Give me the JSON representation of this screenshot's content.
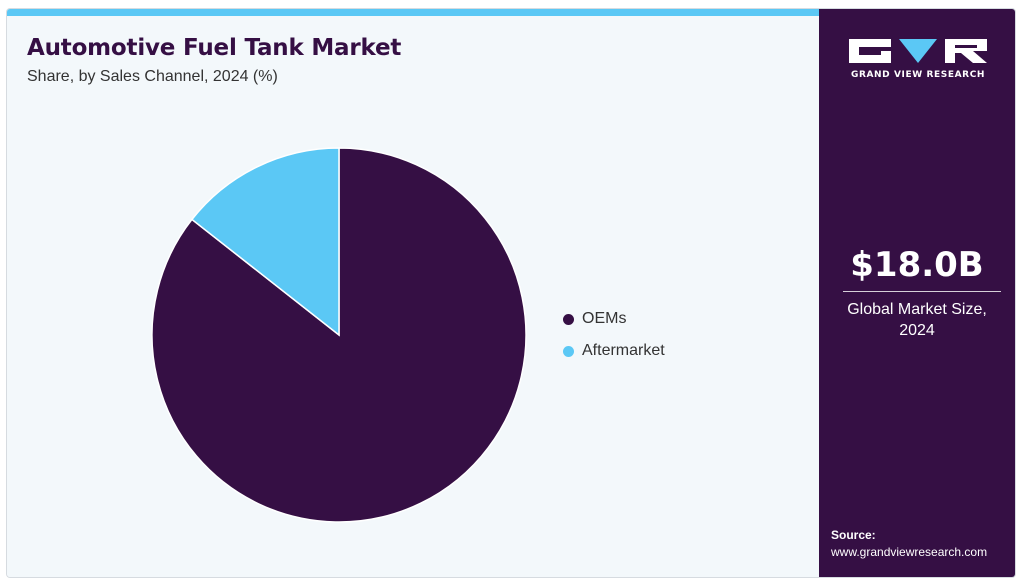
{
  "header": {
    "title": "Automotive Fuel Tank Market",
    "subtitle": "Share, by Sales Channel, 2024 (%)"
  },
  "sidebar": {
    "brand": "GRAND VIEW RESEARCH",
    "metric_value": "$18.0B",
    "metric_label_line1": "Global Market Size,",
    "metric_label_line2": "2024",
    "source_title": "Source:",
    "source_url": "www.grandviewresearch.com"
  },
  "colors": {
    "accent": "#5bc8f5",
    "brand_dark": "#350f44",
    "oems": "#350f44",
    "aftermarket": "#5bc8f5"
  },
  "chart_data": {
    "type": "pie",
    "title": "Automotive Fuel Tank Market",
    "subtitle": "Share, by Sales Channel, 2024 (%)",
    "categories": [
      "OEMs",
      "Aftermarket"
    ],
    "values": [
      85.6,
      14.4
    ],
    "colors": [
      "#350f44",
      "#5bc8f5"
    ],
    "start_angle_deg": 0,
    "direction": "clockwise",
    "legend_position": "right"
  }
}
